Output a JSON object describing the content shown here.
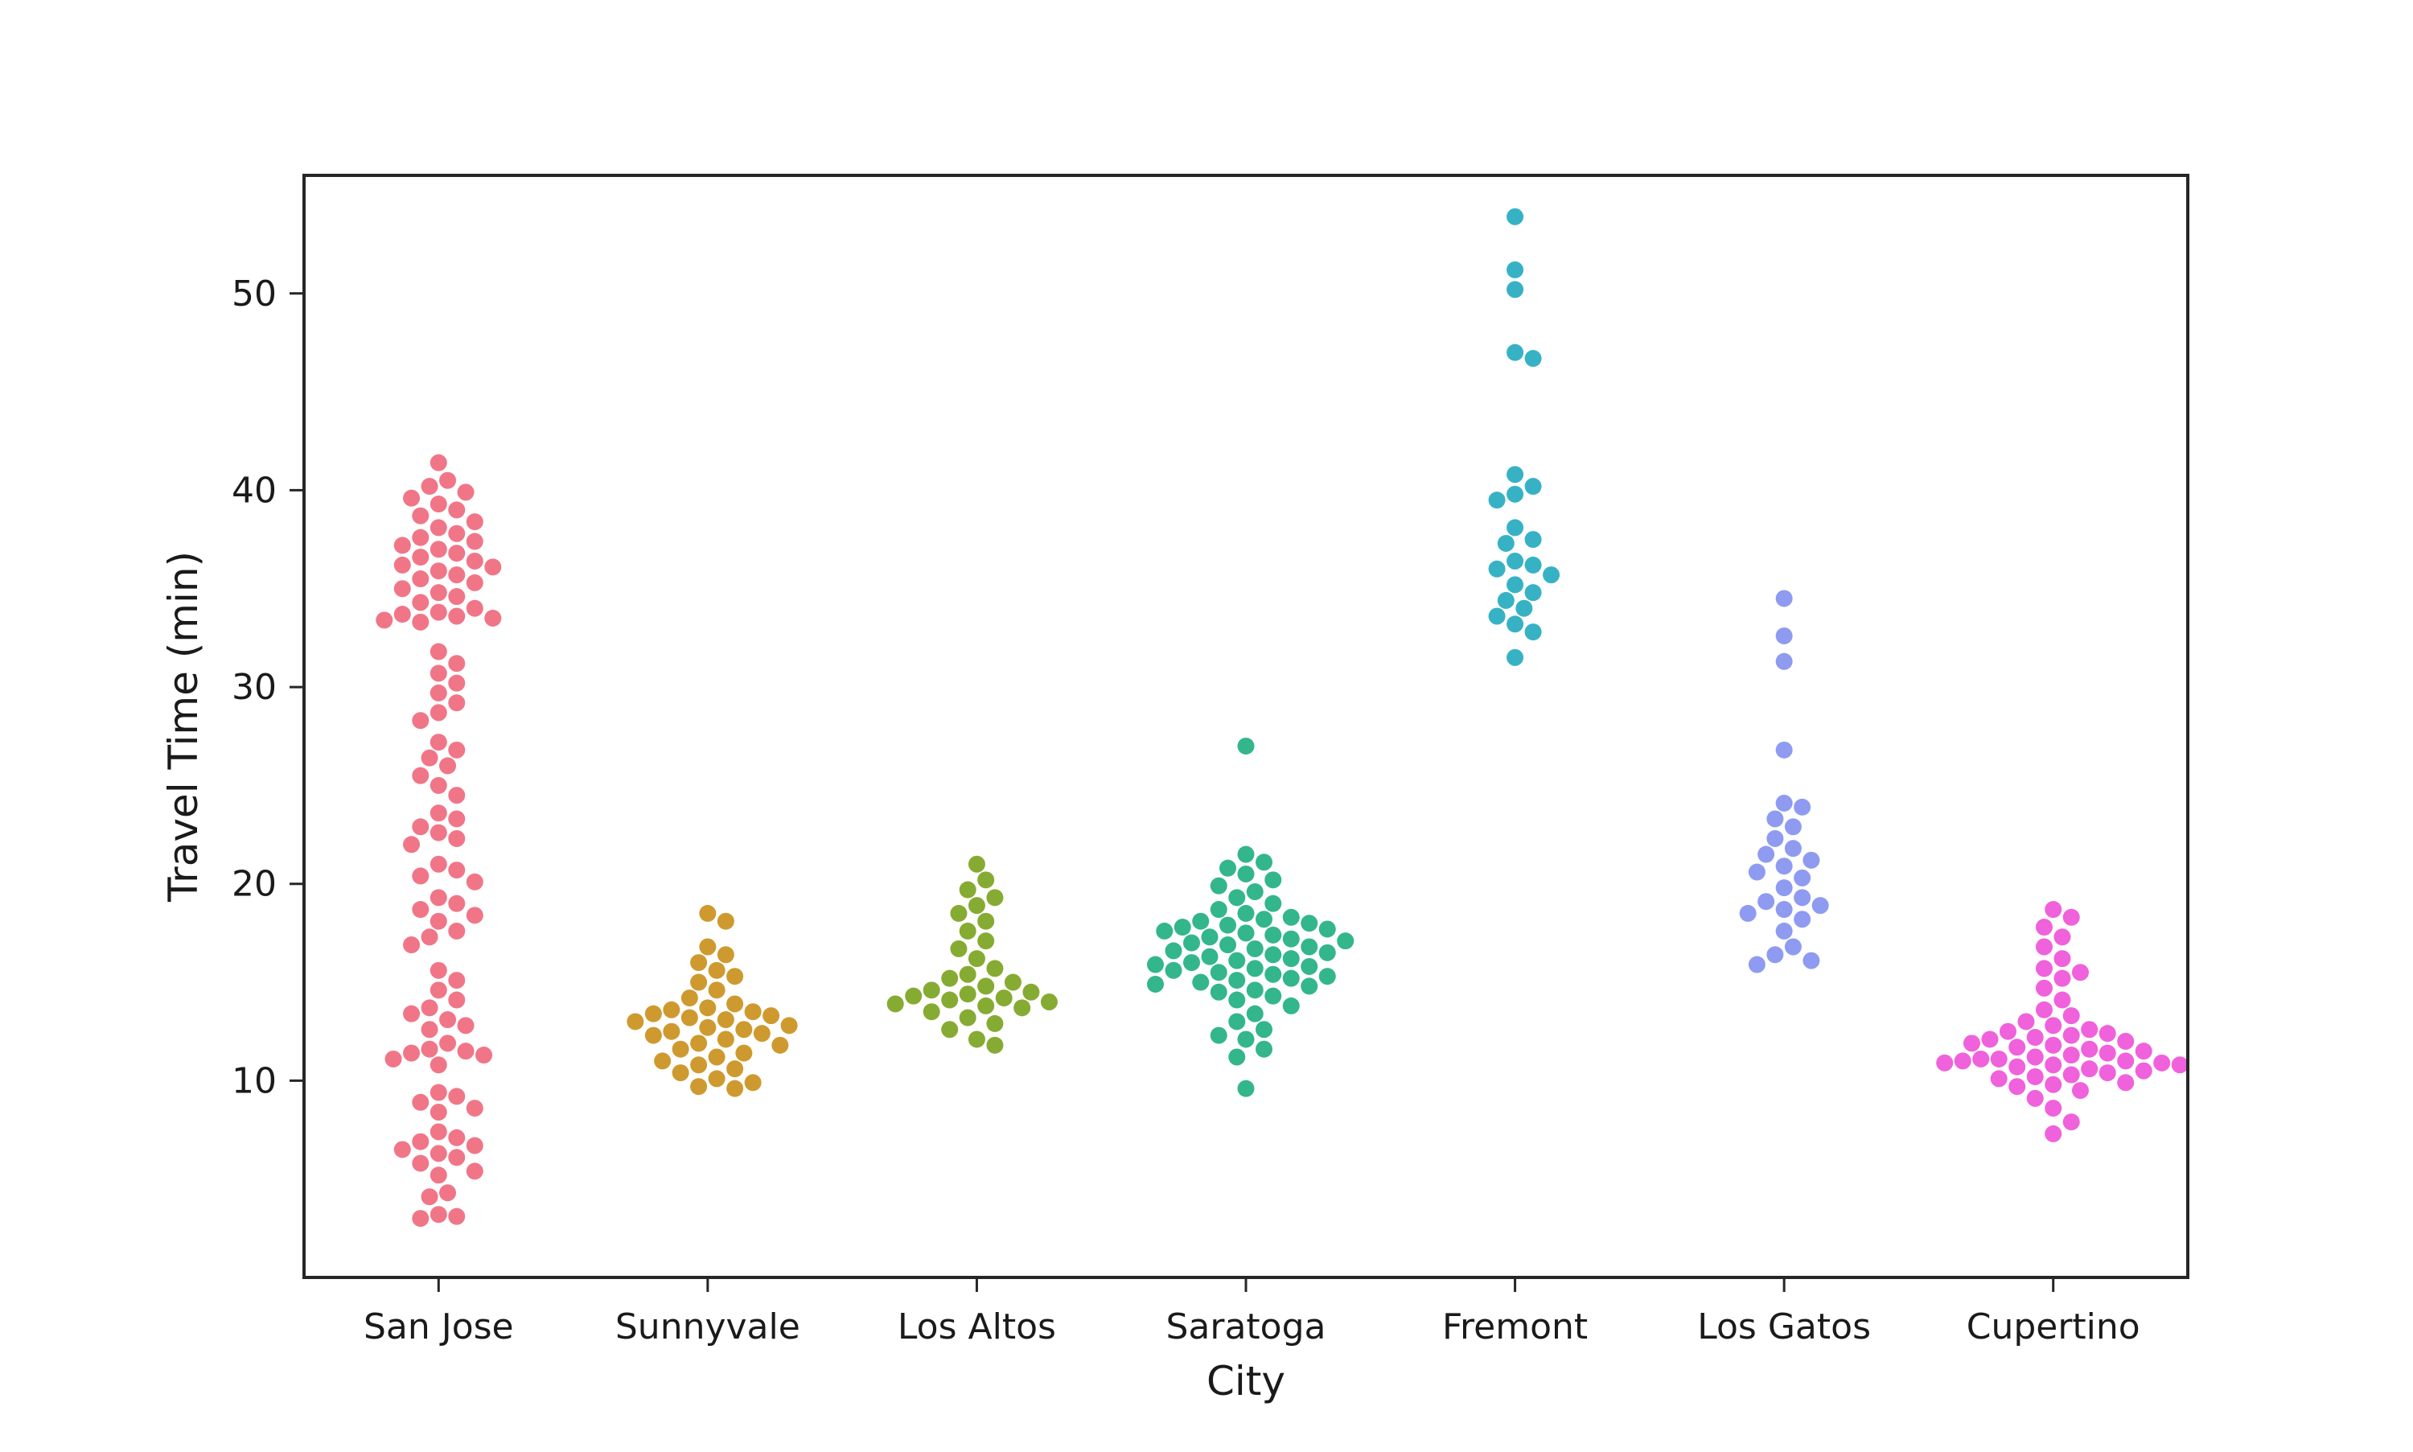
{
  "chart_data": {
    "type": "scatter",
    "subtype": "swarm",
    "title": "",
    "xlabel": "City",
    "ylabel": "Travel Time (min)",
    "ylim": [
      0,
      56
    ],
    "yticks": [
      "10",
      "20",
      "30",
      "40",
      "50"
    ],
    "categories": [
      "San Jose",
      "Sunnyvale",
      "Los Altos",
      "Saratoga",
      "Fremont",
      "Los Gatos",
      "Cupertino"
    ],
    "grid": false,
    "legend": "none",
    "colors": [
      "#f07687",
      "#ce9a2f",
      "#86ab32",
      "#33b68b",
      "#37b2c5",
      "#8e9bf0",
      "#f061dc"
    ],
    "series": [
      {
        "category": "San Jose",
        "values": [
          3.0,
          3.1,
          3.2,
          4.1,
          4.3,
          5.2,
          5.4,
          5.8,
          6.1,
          6.3,
          6.5,
          6.7,
          6.9,
          7.1,
          7.4,
          8.4,
          8.6,
          8.9,
          9.2,
          9.4,
          10.8,
          11.1,
          11.3,
          11.4,
          11.5,
          11.6,
          11.9,
          12.6,
          12.8,
          13.1,
          13.4,
          13.7,
          14.1,
          14.6,
          15.1,
          15.6,
          16.9,
          17.3,
          17.6,
          18.1,
          18.4,
          18.7,
          19.0,
          19.3,
          20.1,
          20.4,
          20.7,
          21.0,
          22.0,
          22.3,
          22.6,
          22.9,
          23.3,
          23.6,
          24.5,
          25.0,
          25.5,
          26.0,
          26.4,
          26.8,
          27.2,
          28.3,
          28.7,
          29.2,
          29.7,
          30.2,
          30.7,
          31.2,
          31.8,
          33.3,
          33.4,
          33.5,
          33.6,
          33.7,
          33.8,
          34.0,
          34.3,
          34.6,
          34.8,
          35.0,
          35.3,
          35.5,
          35.7,
          35.9,
          36.1,
          36.2,
          36.4,
          36.6,
          36.8,
          37.0,
          37.2,
          37.4,
          37.6,
          37.8,
          38.1,
          38.4,
          38.7,
          39.0,
          39.3,
          39.6,
          39.9,
          40.2,
          40.5,
          41.4
        ]
      },
      {
        "category": "Sunnyvale",
        "values": [
          9.6,
          9.7,
          9.9,
          10.1,
          10.4,
          10.6,
          10.8,
          11.0,
          11.2,
          11.4,
          11.6,
          11.8,
          11.9,
          12.1,
          12.3,
          12.4,
          12.5,
          12.6,
          12.7,
          12.8,
          13.0,
          13.1,
          13.2,
          13.3,
          13.4,
          13.5,
          13.6,
          13.7,
          13.9,
          14.2,
          14.6,
          15.0,
          15.3,
          15.6,
          16.0,
          16.4,
          16.8,
          18.1,
          18.5
        ]
      },
      {
        "category": "Los Altos",
        "values": [
          11.8,
          12.1,
          12.6,
          12.9,
          13.2,
          13.5,
          13.7,
          13.8,
          13.9,
          14.0,
          14.1,
          14.2,
          14.3,
          14.4,
          14.5,
          14.6,
          14.8,
          15.0,
          15.2,
          15.4,
          15.7,
          16.2,
          16.7,
          17.1,
          17.6,
          18.1,
          18.5,
          18.9,
          19.3,
          19.7,
          20.2,
          21.0
        ]
      },
      {
        "category": "Saratoga",
        "values": [
          9.6,
          11.2,
          11.6,
          12.1,
          12.3,
          12.6,
          13.0,
          13.4,
          13.8,
          14.1,
          14.3,
          14.5,
          14.6,
          14.8,
          14.9,
          15.0,
          15.1,
          15.2,
          15.3,
          15.4,
          15.5,
          15.6,
          15.7,
          15.8,
          15.9,
          16.0,
          16.1,
          16.2,
          16.3,
          16.4,
          16.5,
          16.6,
          16.7,
          16.8,
          16.9,
          17.0,
          17.1,
          17.2,
          17.3,
          17.4,
          17.5,
          17.6,
          17.7,
          17.8,
          17.9,
          18.0,
          18.1,
          18.2,
          18.3,
          18.5,
          18.7,
          19.0,
          19.3,
          19.6,
          19.9,
          20.2,
          20.5,
          20.8,
          21.1,
          21.5,
          27.0
        ]
      },
      {
        "category": "Fremont",
        "values": [
          31.5,
          32.8,
          33.2,
          33.6,
          34.0,
          34.4,
          34.8,
          35.2,
          35.7,
          36.0,
          36.2,
          36.4,
          37.3,
          37.5,
          38.1,
          39.5,
          39.8,
          40.2,
          40.8,
          46.7,
          47.0,
          50.2,
          51.2,
          53.9
        ]
      },
      {
        "category": "Los Gatos",
        "values": [
          15.9,
          16.1,
          16.4,
          16.8,
          17.6,
          18.2,
          18.5,
          18.7,
          18.9,
          19.1,
          19.3,
          19.8,
          20.3,
          20.6,
          20.9,
          21.2,
          21.5,
          21.8,
          22.3,
          22.9,
          23.3,
          23.9,
          24.1,
          26.8,
          31.3,
          32.6,
          34.5
        ]
      },
      {
        "category": "Cupertino",
        "values": [
          7.3,
          7.9,
          8.6,
          9.1,
          9.5,
          9.7,
          9.8,
          9.9,
          10.1,
          10.2,
          10.3,
          10.4,
          10.5,
          10.6,
          10.7,
          10.8,
          10.8,
          10.9,
          10.9,
          11.0,
          11.0,
          11.1,
          11.1,
          11.2,
          11.3,
          11.4,
          11.5,
          11.6,
          11.7,
          11.8,
          11.9,
          12.0,
          12.1,
          12.2,
          12.3,
          12.4,
          12.5,
          12.6,
          12.8,
          13.0,
          13.3,
          13.6,
          14.1,
          14.7,
          15.2,
          15.5,
          15.7,
          16.2,
          16.8,
          17.3,
          17.8,
          18.3,
          18.7
        ]
      }
    ]
  }
}
